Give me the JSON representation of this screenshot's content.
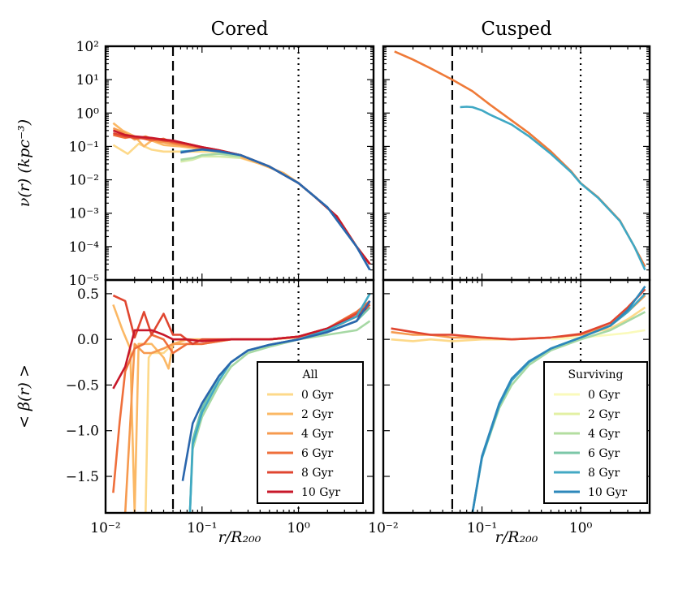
{
  "chart_data": [
    {
      "type": "line",
      "panel": "top-left",
      "title": "Cored",
      "ylabel": "ν(r) (kpc⁻³)",
      "xscale": "log",
      "yscale": "log",
      "xlim": [
        0.01,
        6
      ],
      "ylim": [
        1e-05,
        100
      ],
      "yticks": [
        1e-05,
        0.0001,
        0.001,
        0.01,
        0.1,
        1,
        10,
        100
      ],
      "ytick_labels": [
        "10⁻⁵",
        "10⁻⁴",
        "10⁻³",
        "10⁻²",
        "10⁻¹",
        "10⁰",
        "10¹",
        "10²"
      ],
      "vlines": [
        {
          "x": 0.05,
          "style": "dashed"
        },
        {
          "x": 1.0,
          "style": "dotted"
        }
      ],
      "series": [
        {
          "name": "All 0 Gyr",
          "color": "#fdd98a",
          "x": [
            0.012,
            0.017,
            0.022,
            0.03,
            0.04,
            0.06,
            0.08,
            0.12,
            0.2,
            0.4,
            0.7,
            1.0,
            1.5,
            2.5,
            4,
            5.5
          ],
          "y": [
            0.11,
            0.06,
            0.12,
            0.08,
            0.07,
            0.07,
            0.07,
            0.07,
            0.055,
            0.03,
            0.016,
            0.008,
            0.003,
            0.0008,
            0.0001,
            3e-05
          ]
        },
        {
          "name": "All 2 Gyr",
          "color": "#fbb865",
          "x": [
            0.012,
            0.015,
            0.02,
            0.025,
            0.03,
            0.04,
            0.06,
            0.08,
            0.12,
            0.2,
            0.4,
            0.7,
            1.0,
            1.5,
            2.5,
            4,
            5.5
          ],
          "y": [
            0.5,
            0.3,
            0.2,
            0.1,
            0.15,
            0.11,
            0.1,
            0.09,
            0.08,
            0.06,
            0.03,
            0.016,
            0.008,
            0.003,
            0.0008,
            0.0001,
            3e-05
          ]
        },
        {
          "name": "All 4 Gyr",
          "color": "#f69a4f",
          "x": [
            0.012,
            0.016,
            0.02,
            0.026,
            0.035,
            0.05,
            0.07,
            0.1,
            0.15,
            0.25,
            0.5,
            1.0,
            1.5,
            2.5,
            4,
            5.5
          ],
          "y": [
            0.35,
            0.25,
            0.16,
            0.2,
            0.14,
            0.12,
            0.1,
            0.09,
            0.075,
            0.055,
            0.025,
            0.008,
            0.003,
            0.0008,
            0.0001,
            3e-05
          ]
        },
        {
          "name": "All 6 Gyr",
          "color": "#ef6f3b",
          "x": [
            0.012,
            0.016,
            0.02,
            0.03,
            0.04,
            0.05,
            0.07,
            0.1,
            0.15,
            0.25,
            0.5,
            1.0,
            1.5,
            2.5,
            4,
            5.5
          ],
          "y": [
            0.22,
            0.18,
            0.2,
            0.15,
            0.17,
            0.13,
            0.11,
            0.09,
            0.075,
            0.055,
            0.025,
            0.008,
            0.003,
            0.0008,
            0.0001,
            3e-05
          ]
        },
        {
          "name": "All 8 Gyr",
          "color": "#e04630",
          "x": [
            0.012,
            0.016,
            0.02,
            0.03,
            0.04,
            0.05,
            0.07,
            0.1,
            0.15,
            0.25,
            0.5,
            1.0,
            1.5,
            2.5,
            4,
            5.5
          ],
          "y": [
            0.25,
            0.2,
            0.18,
            0.17,
            0.15,
            0.14,
            0.12,
            0.095,
            0.077,
            0.055,
            0.025,
            0.008,
            0.003,
            0.0008,
            0.0001,
            3e-05
          ]
        },
        {
          "name": "All 10 Gyr",
          "color": "#c8182a",
          "x": [
            0.012,
            0.016,
            0.02,
            0.03,
            0.04,
            0.05,
            0.07,
            0.1,
            0.15,
            0.25,
            0.5,
            1.0,
            1.5,
            2.5,
            4,
            5.5
          ],
          "y": [
            0.3,
            0.22,
            0.2,
            0.18,
            0.16,
            0.15,
            0.12,
            0.095,
            0.077,
            0.055,
            0.025,
            0.008,
            0.003,
            0.0008,
            0.0001,
            3e-05
          ]
        },
        {
          "name": "Surviving 2 Gyr",
          "color": "#d4ebab",
          "x": [
            0.06,
            0.08,
            0.1,
            0.15,
            0.25
          ],
          "y": [
            0.035,
            0.04,
            0.05,
            0.05,
            0.045
          ]
        },
        {
          "name": "Surviving 4 Gyr",
          "color": "#a6d8a4",
          "x": [
            0.06,
            0.08,
            0.1,
            0.15,
            0.25
          ],
          "y": [
            0.04,
            0.045,
            0.055,
            0.06,
            0.05
          ]
        },
        {
          "name": "Surviving 8 Gyr",
          "color": "#3fa8c4",
          "x": [
            0.06,
            0.08,
            0.1,
            0.15,
            0.25,
            0.5,
            1,
            2,
            4,
            5.5
          ],
          "y": [
            0.07,
            0.075,
            0.08,
            0.07,
            0.055,
            0.025,
            0.008,
            0.0015,
            0.0001,
            2e-05
          ]
        },
        {
          "name": "Surviving 10 Gyr",
          "color": "#2a66ad",
          "x": [
            0.06,
            0.08,
            0.1,
            0.15,
            0.25,
            0.5,
            1,
            2,
            4,
            5.5
          ],
          "y": [
            0.065,
            0.075,
            0.082,
            0.072,
            0.055,
            0.025,
            0.008,
            0.0015,
            0.0001,
            2e-05
          ]
        }
      ]
    },
    {
      "type": "line",
      "panel": "top-right",
      "title": "Cusped",
      "xscale": "log",
      "yscale": "log",
      "xlim": [
        0.01,
        5
      ],
      "ylim": [
        1e-05,
        100
      ],
      "vlines": [
        {
          "x": 0.05,
          "style": "dashed"
        },
        {
          "x": 1.0,
          "style": "dotted"
        }
      ],
      "series": [
        {
          "name": "All",
          "color": "#ef7a38",
          "x": [
            0.013,
            0.02,
            0.03,
            0.05,
            0.08,
            0.12,
            0.2,
            0.3,
            0.5,
            0.8,
            1.0,
            1.5,
            2.5,
            3.5,
            4.5
          ],
          "y": [
            70,
            40,
            22,
            10,
            4.5,
            1.8,
            0.6,
            0.25,
            0.07,
            0.018,
            0.008,
            0.003,
            0.0006,
            0.0001,
            2.5e-05
          ]
        },
        {
          "name": "Surviving",
          "color": "#3fa8c4",
          "x": [
            0.06,
            0.07,
            0.08,
            0.1,
            0.12,
            0.2,
            0.3,
            0.5,
            0.8,
            1.0,
            1.5,
            2.5,
            3.5,
            4.5
          ],
          "y": [
            1.5,
            1.55,
            1.5,
            1.2,
            0.9,
            0.45,
            0.2,
            0.06,
            0.017,
            0.0078,
            0.0029,
            0.00058,
            0.0001,
            2e-05
          ]
        }
      ]
    },
    {
      "type": "line",
      "panel": "bottom-left",
      "ylabel": "< β(r) >",
      "xlabel": "r/R₂₀₀",
      "xscale": "log",
      "xlim": [
        0.01,
        6
      ],
      "ylim": [
        -1.9,
        0.65
      ],
      "yticks": [
        -1.5,
        -1.0,
        -0.5,
        0.0,
        0.5
      ],
      "ytick_labels": [
        "−1.5",
        "−1.0",
        "−0.5",
        "0.0",
        "0.5"
      ],
      "xtick_labels": [
        "10⁻²",
        "10⁻¹",
        "10⁰"
      ],
      "vlines": [
        {
          "x": 0.05,
          "style": "dashed"
        },
        {
          "x": 1.0,
          "style": "dotted"
        }
      ],
      "legend": {
        "title": "All",
        "entries": [
          "0 Gyr",
          "2 Gyr",
          "4 Gyr",
          "6 Gyr",
          "8 Gyr",
          "10 Gyr"
        ]
      },
      "series": [
        {
          "name": "All 0 Gyr",
          "color": "#fdd98a",
          "x": [
            0.026,
            0.028,
            0.03,
            0.04,
            0.05,
            0.07,
            0.1,
            0.2,
            0.5,
            1,
            2,
            4,
            5.5
          ],
          "y": [
            -1.9,
            -0.2,
            -0.15,
            -0.15,
            -0.05,
            0.0,
            0.0,
            0.0,
            0.0,
            0.02,
            0.1,
            0.25,
            0.35
          ]
        },
        {
          "name": "All 2 Gyr",
          "color": "#fbb865",
          "x": [
            0.012,
            0.015,
            0.018,
            0.02,
            0.022,
            0.03,
            0.04,
            0.045,
            0.05,
            0.07,
            0.1,
            0.2,
            0.5,
            1,
            2,
            4,
            5.5
          ],
          "y": [
            0.38,
            0.1,
            -0.1,
            -1.9,
            -0.05,
            -0.05,
            -0.2,
            -0.32,
            -0.05,
            0.0,
            0.0,
            0.0,
            0.0,
            0.03,
            0.12,
            0.3,
            0.4
          ]
        },
        {
          "name": "All 4 Gyr",
          "color": "#f69a4f",
          "x": [
            0.016,
            0.02,
            0.025,
            0.03,
            0.04,
            0.05,
            0.07,
            0.1,
            0.2,
            0.5,
            1,
            2,
            4,
            5.5
          ],
          "y": [
            -1.9,
            -0.05,
            -0.15,
            -0.15,
            -0.1,
            -0.05,
            -0.05,
            -0.05,
            0.0,
            0.0,
            0.03,
            0.1,
            0.25,
            0.38
          ]
        },
        {
          "name": "All 6 Gyr",
          "color": "#ef6f3b",
          "x": [
            0.012,
            0.014,
            0.016,
            0.02,
            0.025,
            0.03,
            0.04,
            0.05,
            0.07,
            0.1,
            0.2,
            0.5,
            1,
            2,
            4,
            5.5
          ],
          "y": [
            -1.68,
            -0.9,
            -0.35,
            -0.1,
            -0.05,
            0.05,
            0.0,
            -0.15,
            -0.05,
            -0.05,
            0.0,
            0.0,
            0.03,
            0.12,
            0.3,
            0.42
          ]
        },
        {
          "name": "All 8 Gyr",
          "color": "#e04630",
          "x": [
            0.012,
            0.016,
            0.02,
            0.025,
            0.03,
            0.04,
            0.05,
            0.06,
            0.08,
            0.1,
            0.2,
            0.5,
            1,
            2,
            4,
            5.5
          ],
          "y": [
            0.48,
            0.42,
            0.02,
            0.3,
            0.05,
            0.28,
            0.05,
            0.05,
            -0.05,
            0.0,
            0.0,
            0.0,
            0.03,
            0.12,
            0.28,
            0.38
          ]
        },
        {
          "name": "All 10 Gyr",
          "color": "#c8182a",
          "x": [
            0.012,
            0.016,
            0.02,
            0.025,
            0.03,
            0.04,
            0.05,
            0.07,
            0.1,
            0.2,
            0.5,
            1,
            2,
            4,
            5.5
          ],
          "y": [
            -0.54,
            -0.3,
            0.1,
            0.1,
            0.1,
            0.05,
            0.0,
            0.0,
            -0.02,
            0.0,
            0.0,
            0.03,
            0.12,
            0.25,
            0.35
          ]
        },
        {
          "name": "Surviving 4 Gyr",
          "color": "#a6d8a4",
          "x": [
            0.075,
            0.08,
            0.1,
            0.15,
            0.2,
            0.3,
            0.5,
            1,
            2,
            4,
            5.5
          ],
          "y": [
            -1.9,
            -1.2,
            -0.85,
            -0.5,
            -0.3,
            -0.15,
            -0.08,
            0.0,
            0.05,
            0.1,
            0.2
          ]
        },
        {
          "name": "Surviving 6 Gyr",
          "color": "#75c4a8",
          "x": [
            0.075,
            0.08,
            0.1,
            0.15,
            0.2,
            0.3,
            0.5,
            1,
            2,
            4,
            5.5
          ],
          "y": [
            -1.9,
            -1.1,
            -0.75,
            -0.4,
            -0.25,
            -0.12,
            -0.06,
            0.0,
            0.08,
            0.2,
            0.35
          ]
        },
        {
          "name": "Surviving 8 Gyr",
          "color": "#3fa8c4",
          "x": [
            0.075,
            0.08,
            0.1,
            0.15,
            0.2,
            0.3,
            0.5,
            1,
            2,
            4,
            5.5
          ],
          "y": [
            -1.9,
            -1.15,
            -0.8,
            -0.45,
            -0.25,
            -0.12,
            -0.06,
            0.0,
            0.1,
            0.25,
            0.5
          ]
        },
        {
          "name": "Surviving 10 Gyr",
          "color": "#2a66ad",
          "x": [
            0.063,
            0.08,
            0.1,
            0.15,
            0.2,
            0.3,
            0.5,
            1,
            2,
            4,
            5.5
          ],
          "y": [
            -1.55,
            -0.92,
            -0.7,
            -0.4,
            -0.25,
            -0.12,
            -0.06,
            0.0,
            0.08,
            0.2,
            0.42
          ]
        }
      ]
    },
    {
      "type": "line",
      "panel": "bottom-right",
      "xlabel": "r/R₂₀₀",
      "xscale": "log",
      "xlim": [
        0.01,
        5
      ],
      "ylim": [
        -1.9,
        0.65
      ],
      "xtick_labels": [
        "10⁻²",
        "10⁻¹",
        "10⁰"
      ],
      "vlines": [
        {
          "x": 0.05,
          "style": "dashed"
        },
        {
          "x": 1.0,
          "style": "dotted"
        }
      ],
      "legend": {
        "title": "Surviving",
        "entries": [
          "0 Gyr",
          "2 Gyr",
          "4 Gyr",
          "6 Gyr",
          "8 Gyr",
          "10 Gyr"
        ]
      },
      "series": [
        {
          "name": "All 0 Gyr",
          "color": "#fdd98a",
          "x": [
            0.012,
            0.02,
            0.03,
            0.05,
            0.1,
            0.2,
            0.5,
            1,
            2,
            3,
            4.5
          ],
          "y": [
            0.0,
            -0.02,
            0.0,
            -0.02,
            0.0,
            0.0,
            0.02,
            0.05,
            0.12,
            0.22,
            0.35
          ]
        },
        {
          "name": "All 4 Gyr",
          "color": "#f69a4f",
          "x": [
            0.012,
            0.02,
            0.03,
            0.05,
            0.1,
            0.2,
            0.5,
            1,
            2,
            3,
            4.5
          ],
          "y": [
            0.08,
            0.05,
            0.05,
            0.02,
            0.02,
            0.0,
            0.02,
            0.05,
            0.15,
            0.3,
            0.48
          ]
        },
        {
          "name": "All 8 Gyr",
          "color": "#e04630",
          "x": [
            0.012,
            0.02,
            0.03,
            0.05,
            0.1,
            0.2,
            0.5,
            1,
            2,
            3,
            4.5
          ],
          "y": [
            0.12,
            0.08,
            0.05,
            0.05,
            0.02,
            0.0,
            0.02,
            0.06,
            0.18,
            0.35,
            0.55
          ]
        },
        {
          "name": "Surviving 0 Gyr",
          "color": "#fafabb",
          "x": [
            0.5,
            1,
            2,
            3,
            4.5
          ],
          "y": [
            0.0,
            0.02,
            0.05,
            0.07,
            0.1
          ]
        },
        {
          "name": "Surviving 4 Gyr",
          "color": "#a6d8a4",
          "x": [
            0.08,
            0.1,
            0.15,
            0.2,
            0.3,
            0.5,
            1,
            2,
            3,
            4.5
          ],
          "y": [
            -1.9,
            -1.3,
            -0.75,
            -0.5,
            -0.28,
            -0.12,
            0.0,
            0.1,
            0.2,
            0.3
          ]
        },
        {
          "name": "Surviving 8 Gyr",
          "color": "#3fa8c4",
          "x": [
            0.08,
            0.1,
            0.15,
            0.2,
            0.3,
            0.5,
            1,
            2,
            3,
            4.5
          ],
          "y": [
            -1.9,
            -1.3,
            -0.72,
            -0.45,
            -0.25,
            -0.1,
            0.02,
            0.15,
            0.3,
            0.5
          ]
        },
        {
          "name": "Surviving 10 Gyr",
          "color": "#2e88bb",
          "x": [
            0.08,
            0.1,
            0.15,
            0.2,
            0.3,
            0.5,
            1,
            2,
            3,
            4.5
          ],
          "y": [
            -1.9,
            -1.28,
            -0.7,
            -0.43,
            -0.24,
            -0.1,
            0.02,
            0.15,
            0.32,
            0.58
          ]
        }
      ]
    }
  ],
  "legend_colors": {
    "all": [
      "#fdd98a",
      "#fbb865",
      "#f69a4f",
      "#ef6f3b",
      "#e04630",
      "#c8182a"
    ],
    "surviving": [
      "#fafabb",
      "#e3f0a4",
      "#b3dea0",
      "#7cc7a8",
      "#43a9c4",
      "#2e88bb"
    ]
  },
  "xticks_labels": [
    "10⁻²",
    "10⁻¹",
    "10⁰",
    "10⁻²",
    "10⁻¹",
    "10⁰"
  ]
}
